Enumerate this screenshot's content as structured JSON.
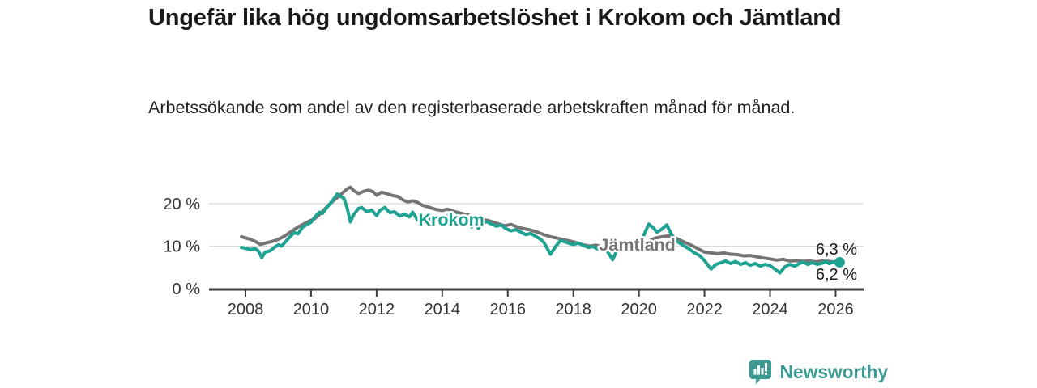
{
  "header": {
    "title": "Ungefär lika hög ungdomsarbetslöshet i Krokom och Jämtland",
    "subtitle": "Arbetssökande som andel av den registerbaserade arbetskraften månad för månad."
  },
  "footer": {
    "brand": "Newsworthy",
    "brand_color": "#3e9b93"
  },
  "colors": {
    "krokom": "#1ea292",
    "jamtland": "#757575",
    "axis": "#3c3c3c",
    "gridline": "#d9d9d9",
    "tick_text": "#333333",
    "end_label_text": "#1a1a1a"
  },
  "chart_data": {
    "type": "line",
    "title": "Ungefär lika hög ungdomsarbetslöshet i Krokom och Jämtland",
    "subtitle": "Arbetssökande som andel av den registerbaserade arbetskraften månad för månad.",
    "grid": "horizontal-only",
    "legend_position": "inline-labels",
    "x_range": [
      2007.85,
      2026.4
    ],
    "y_range": [
      0,
      25
    ],
    "x_ticks": [
      {
        "value": 2008,
        "label": "2008"
      },
      {
        "value": 2010,
        "label": "2010"
      },
      {
        "value": 2012,
        "label": "2012"
      },
      {
        "value": 2014,
        "label": "2014"
      },
      {
        "value": 2016,
        "label": "2016"
      },
      {
        "value": 2018,
        "label": "2018"
      },
      {
        "value": 2020,
        "label": "2020"
      },
      {
        "value": 2022,
        "label": "2022"
      },
      {
        "value": 2024,
        "label": "2024"
      },
      {
        "value": 2026,
        "label": "2026"
      }
    ],
    "y_ticks": [
      {
        "value": 0,
        "label": "0 %"
      },
      {
        "value": 10,
        "label": "10 %"
      },
      {
        "value": 20,
        "label": "20 %"
      }
    ],
    "series": [
      {
        "name": "Jämtland",
        "color": "#757575",
        "inline_label": {
          "text": "Jämtland",
          "x": 2019.95,
          "y": 10.3
        },
        "end_label": "6,3 %",
        "end_value": 6.3,
        "end_dot": false,
        "points": [
          [
            2007.88,
            12.2
          ],
          [
            2008.15,
            11.6
          ],
          [
            2008.3,
            11.1
          ],
          [
            2008.45,
            10.4
          ],
          [
            2008.6,
            10.7
          ],
          [
            2008.75,
            11.0
          ],
          [
            2008.9,
            11.3
          ],
          [
            2009.05,
            11.8
          ],
          [
            2009.2,
            12.4
          ],
          [
            2009.35,
            13.2
          ],
          [
            2009.5,
            14.0
          ],
          [
            2009.65,
            14.7
          ],
          [
            2009.8,
            15.3
          ],
          [
            2009.95,
            15.9
          ],
          [
            2010.1,
            16.4
          ],
          [
            2010.25,
            17.4
          ],
          [
            2010.4,
            18.6
          ],
          [
            2010.55,
            19.8
          ],
          [
            2010.7,
            20.8
          ],
          [
            2010.85,
            21.8
          ],
          [
            2011.0,
            22.8
          ],
          [
            2011.1,
            23.5
          ],
          [
            2011.2,
            23.9
          ],
          [
            2011.3,
            23.1
          ],
          [
            2011.45,
            22.4
          ],
          [
            2011.6,
            22.9
          ],
          [
            2011.75,
            23.2
          ],
          [
            2011.9,
            22.8
          ],
          [
            2012.0,
            22.0
          ],
          [
            2012.15,
            22.7
          ],
          [
            2012.3,
            22.4
          ],
          [
            2012.5,
            21.9
          ],
          [
            2012.65,
            21.7
          ],
          [
            2012.8,
            20.9
          ],
          [
            2012.95,
            20.4
          ],
          [
            2013.1,
            20.7
          ],
          [
            2013.25,
            20.3
          ],
          [
            2013.4,
            19.6
          ],
          [
            2013.55,
            19.3
          ],
          [
            2013.7,
            18.9
          ],
          [
            2013.85,
            18.6
          ],
          [
            2014.0,
            18.4
          ],
          [
            2014.15,
            18.7
          ],
          [
            2014.3,
            18.3
          ],
          [
            2014.5,
            17.9
          ],
          [
            2014.7,
            17.5
          ],
          [
            2014.9,
            17.1
          ],
          [
            2015.1,
            16.7
          ],
          [
            2015.3,
            16.2
          ],
          [
            2015.5,
            15.8
          ],
          [
            2015.7,
            15.3
          ],
          [
            2015.9,
            14.8
          ],
          [
            2016.1,
            15.1
          ],
          [
            2016.3,
            14.5
          ],
          [
            2016.5,
            14.1
          ],
          [
            2016.7,
            13.8
          ],
          [
            2016.9,
            13.3
          ],
          [
            2017.1,
            12.7
          ],
          [
            2017.3,
            12.2
          ],
          [
            2017.5,
            11.9
          ],
          [
            2017.7,
            11.5
          ],
          [
            2017.9,
            11.2
          ],
          [
            2018.1,
            10.8
          ],
          [
            2018.3,
            10.3
          ],
          [
            2018.5,
            10.0
          ],
          [
            2018.7,
            10.2
          ],
          [
            2018.9,
            9.8
          ],
          [
            2019.1,
            9.6
          ],
          [
            2019.3,
            9.4
          ],
          [
            2019.5,
            9.6
          ],
          [
            2019.7,
            9.4
          ],
          [
            2019.9,
            9.5
          ],
          [
            2020.1,
            10.1
          ],
          [
            2020.3,
            11.2
          ],
          [
            2020.5,
            11.9
          ],
          [
            2020.7,
            12.2
          ],
          [
            2020.9,
            12.4
          ],
          [
            2021.05,
            12.1
          ],
          [
            2021.2,
            11.6
          ],
          [
            2021.4,
            10.9
          ],
          [
            2021.6,
            10.2
          ],
          [
            2021.8,
            9.4
          ],
          [
            2022.0,
            8.6
          ],
          [
            2022.2,
            8.4
          ],
          [
            2022.4,
            8.2
          ],
          [
            2022.6,
            8.4
          ],
          [
            2022.8,
            8.1
          ],
          [
            2023.0,
            8.0
          ],
          [
            2023.2,
            7.7
          ],
          [
            2023.4,
            7.8
          ],
          [
            2023.6,
            7.5
          ],
          [
            2023.8,
            7.2
          ],
          [
            2024.0,
            7.0
          ],
          [
            2024.2,
            6.7
          ],
          [
            2024.4,
            6.9
          ],
          [
            2024.6,
            6.5
          ],
          [
            2024.8,
            6.6
          ],
          [
            2025.0,
            6.4
          ],
          [
            2025.2,
            6.5
          ],
          [
            2025.4,
            6.3
          ],
          [
            2025.6,
            6.5
          ],
          [
            2025.8,
            6.4
          ],
          [
            2026.0,
            6.2
          ],
          [
            2026.12,
            6.3
          ]
        ]
      },
      {
        "name": "Krokom",
        "color": "#1ea292",
        "inline_label": {
          "text": "Krokom",
          "x": 2014.28,
          "y": 16.2
        },
        "end_label": "6,2 %",
        "end_value": 6.2,
        "end_dot": true,
        "points": [
          [
            2007.88,
            9.7
          ],
          [
            2008.15,
            9.2
          ],
          [
            2008.3,
            9.4
          ],
          [
            2008.4,
            8.8
          ],
          [
            2008.5,
            7.3
          ],
          [
            2008.6,
            8.6
          ],
          [
            2008.75,
            8.9
          ],
          [
            2008.9,
            9.8
          ],
          [
            2009.0,
            10.3
          ],
          [
            2009.1,
            10.0
          ],
          [
            2009.25,
            11.3
          ],
          [
            2009.4,
            12.6
          ],
          [
            2009.5,
            13.2
          ],
          [
            2009.6,
            12.9
          ],
          [
            2009.75,
            14.5
          ],
          [
            2009.9,
            15.2
          ],
          [
            2010.0,
            15.6
          ],
          [
            2010.1,
            16.7
          ],
          [
            2010.25,
            18.0
          ],
          [
            2010.35,
            17.7
          ],
          [
            2010.5,
            19.3
          ],
          [
            2010.6,
            20.2
          ],
          [
            2010.7,
            21.2
          ],
          [
            2010.8,
            22.3
          ],
          [
            2010.9,
            21.7
          ],
          [
            2011.0,
            21.3
          ],
          [
            2011.1,
            19.0
          ],
          [
            2011.2,
            15.7
          ],
          [
            2011.3,
            17.4
          ],
          [
            2011.45,
            18.9
          ],
          [
            2011.55,
            19.1
          ],
          [
            2011.7,
            18.1
          ],
          [
            2011.85,
            18.5
          ],
          [
            2012.0,
            17.2
          ],
          [
            2012.1,
            18.4
          ],
          [
            2012.25,
            19.1
          ],
          [
            2012.4,
            17.9
          ],
          [
            2012.55,
            18.1
          ],
          [
            2012.7,
            17.1
          ],
          [
            2012.85,
            17.5
          ],
          [
            2013.0,
            16.9
          ],
          [
            2013.1,
            18.0
          ],
          [
            2013.25,
            16.1
          ],
          [
            2013.4,
            16.4
          ],
          [
            2013.55,
            15.9
          ],
          [
            2013.7,
            16.8
          ],
          [
            2013.85,
            17.0
          ],
          [
            2014.0,
            16.6
          ],
          [
            2014.15,
            17.1
          ],
          [
            2014.3,
            16.8
          ],
          [
            2014.45,
            17.3
          ],
          [
            2014.6,
            16.2
          ],
          [
            2014.7,
            14.8
          ],
          [
            2014.8,
            16.0
          ],
          [
            2014.9,
            14.5
          ],
          [
            2015.0,
            15.8
          ],
          [
            2015.1,
            14.2
          ],
          [
            2015.2,
            15.3
          ],
          [
            2015.35,
            15.8
          ],
          [
            2015.5,
            15.2
          ],
          [
            2015.65,
            14.7
          ],
          [
            2015.8,
            15.0
          ],
          [
            2015.95,
            14.1
          ],
          [
            2016.1,
            13.6
          ],
          [
            2016.25,
            13.9
          ],
          [
            2016.4,
            13.3
          ],
          [
            2016.55,
            12.7
          ],
          [
            2016.7,
            13.0
          ],
          [
            2016.85,
            12.3
          ],
          [
            2017.0,
            11.6
          ],
          [
            2017.1,
            10.9
          ],
          [
            2017.3,
            8.1
          ],
          [
            2017.45,
            9.8
          ],
          [
            2017.6,
            11.3
          ],
          [
            2017.75,
            11.0
          ],
          [
            2017.9,
            10.6
          ],
          [
            2018.0,
            10.4
          ],
          [
            2018.15,
            10.7
          ],
          [
            2018.3,
            10.2
          ],
          [
            2018.45,
            9.7
          ],
          [
            2018.6,
            9.9
          ],
          [
            2018.75,
            9.3
          ],
          [
            2018.9,
            8.9
          ],
          [
            2019.0,
            9.2
          ],
          [
            2019.2,
            6.8
          ],
          [
            2019.35,
            9.4
          ],
          [
            2019.5,
            9.7
          ],
          [
            2019.65,
            9.9
          ],
          [
            2019.8,
            9.6
          ],
          [
            2020.0,
            10.2
          ],
          [
            2020.15,
            12.6
          ],
          [
            2020.3,
            15.2
          ],
          [
            2020.45,
            14.2
          ],
          [
            2020.55,
            13.3
          ],
          [
            2020.7,
            14.0
          ],
          [
            2020.85,
            15.0
          ],
          [
            2021.0,
            12.7
          ],
          [
            2021.15,
            11.2
          ],
          [
            2021.3,
            10.4
          ],
          [
            2021.5,
            9.5
          ],
          [
            2021.7,
            8.4
          ],
          [
            2021.85,
            7.8
          ],
          [
            2022.0,
            6.6
          ],
          [
            2022.1,
            5.6
          ],
          [
            2022.2,
            4.6
          ],
          [
            2022.35,
            5.7
          ],
          [
            2022.5,
            6.1
          ],
          [
            2022.65,
            6.5
          ],
          [
            2022.8,
            5.9
          ],
          [
            2022.95,
            6.4
          ],
          [
            2023.1,
            5.7
          ],
          [
            2023.25,
            6.1
          ],
          [
            2023.4,
            5.5
          ],
          [
            2023.55,
            5.9
          ],
          [
            2023.7,
            5.3
          ],
          [
            2023.85,
            5.7
          ],
          [
            2024.0,
            5.4
          ],
          [
            2024.15,
            4.6
          ],
          [
            2024.3,
            3.7
          ],
          [
            2024.45,
            5.1
          ],
          [
            2024.6,
            5.7
          ],
          [
            2024.75,
            5.3
          ],
          [
            2024.9,
            5.9
          ],
          [
            2025.0,
            6.2
          ],
          [
            2025.15,
            5.7
          ],
          [
            2025.3,
            6.1
          ],
          [
            2025.45,
            5.7
          ],
          [
            2025.6,
            6.0
          ],
          [
            2025.7,
            6.4
          ],
          [
            2025.8,
            5.9
          ],
          [
            2025.95,
            6.3
          ],
          [
            2026.12,
            6.2
          ]
        ]
      }
    ]
  }
}
